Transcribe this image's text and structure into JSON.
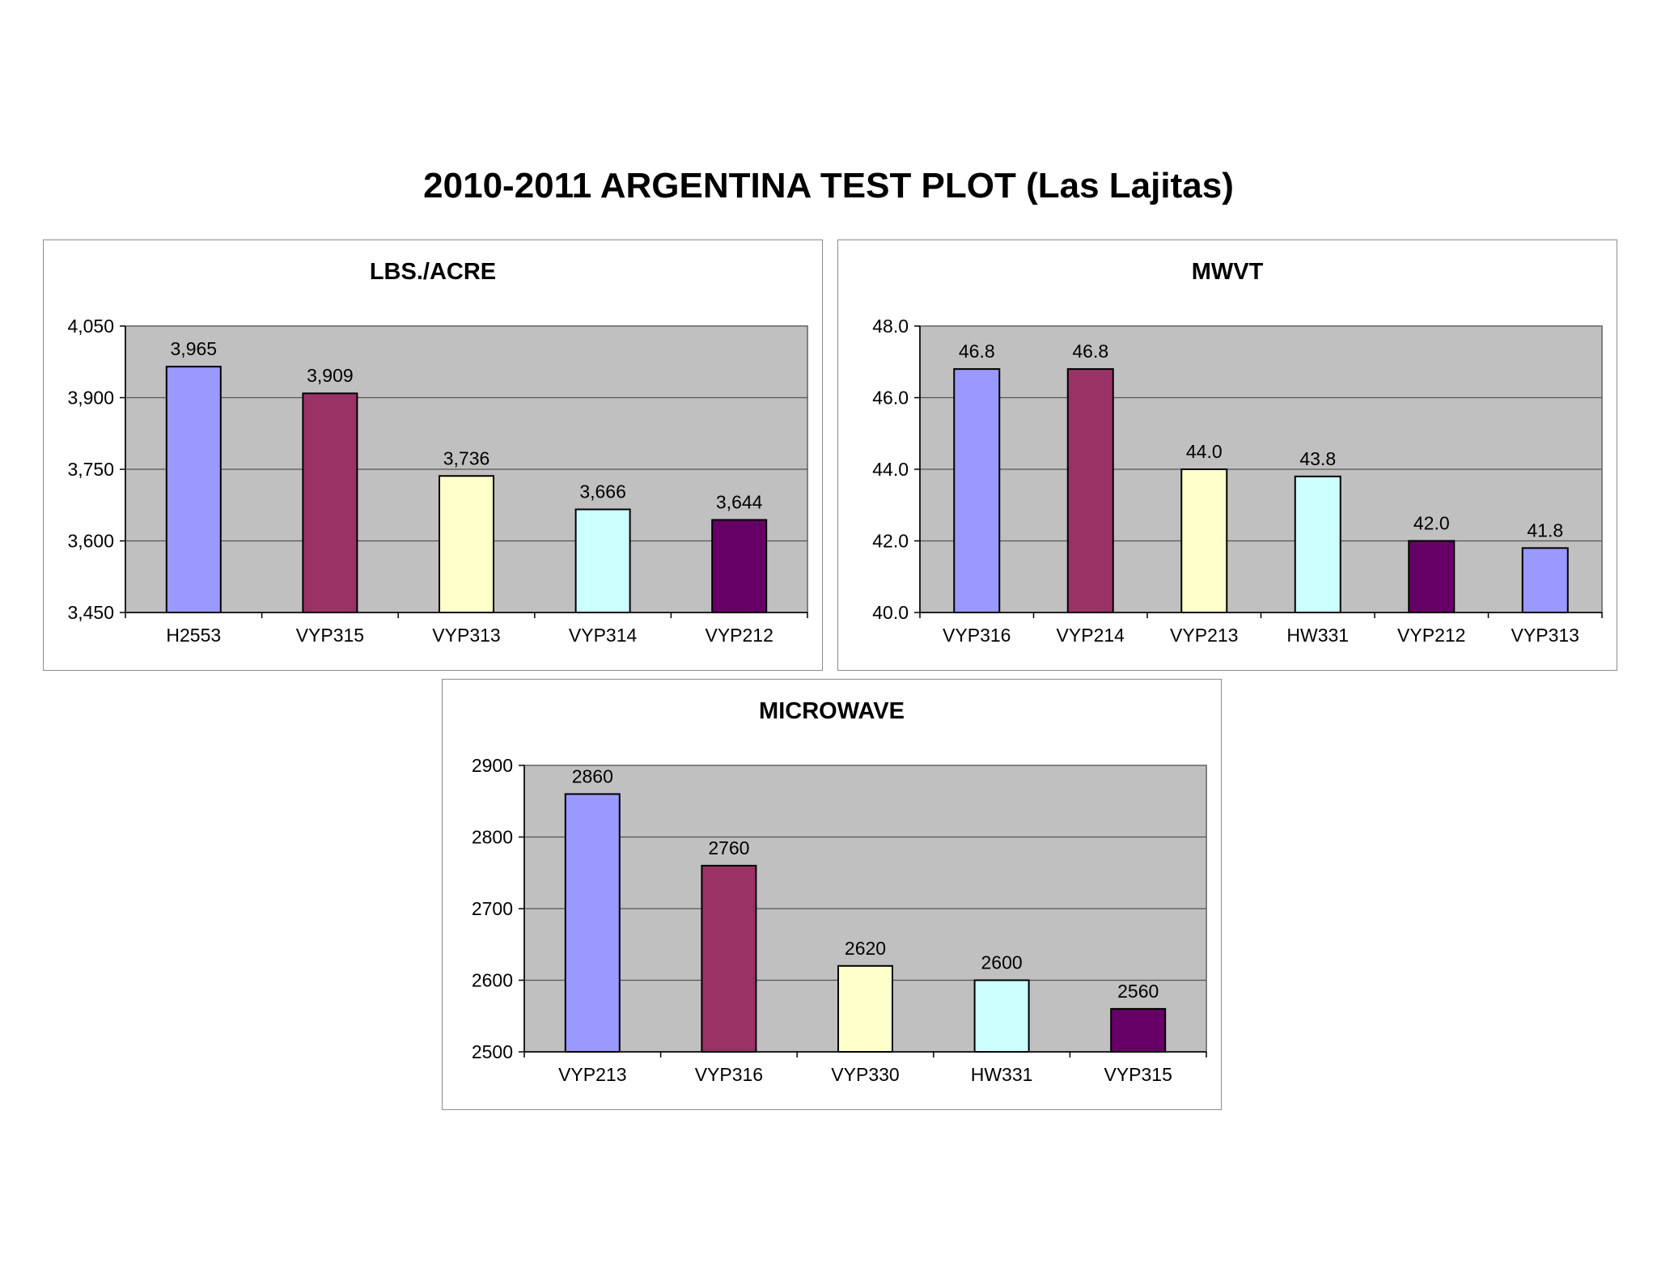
{
  "page": {
    "title": "2010-2011 ARGENTINA TEST PLOT (Las Lajitas)"
  },
  "colors": {
    "plot_bg": "#c0c0c0",
    "bar_1": "#9999ff",
    "bar_2": "#993366",
    "bar_3": "#ffffcc",
    "bar_4": "#ccffff",
    "bar_5": "#660066"
  },
  "chart_data": [
    {
      "id": "lbs",
      "type": "bar",
      "title": "LBS./ACRE",
      "categories": [
        "H2553",
        "VYP315",
        "VYP313",
        "VYP314",
        "VYP212"
      ],
      "values": [
        3965,
        3909,
        3736,
        3666,
        3644
      ],
      "value_labels": [
        "3,965",
        "3,909",
        "3,736",
        "3,666",
        "3,644"
      ],
      "colors": [
        "#9999ff",
        "#993366",
        "#ffffcc",
        "#ccffff",
        "#660066"
      ],
      "ylim": [
        3450,
        4050
      ],
      "yticks": [
        3450,
        3600,
        3750,
        3900,
        4050
      ],
      "ytick_labels": [
        "3,450",
        "3,600",
        "3,750",
        "3,900",
        "4,050"
      ],
      "grid": true,
      "legend": "none"
    },
    {
      "id": "mwvt",
      "type": "bar",
      "title": "MWVT",
      "categories": [
        "VYP316",
        "VYP214",
        "VYP213",
        "HW331",
        "VYP212",
        "VYP313"
      ],
      "values": [
        46.8,
        46.8,
        44.0,
        43.8,
        42.0,
        41.8
      ],
      "value_labels": [
        "46.8",
        "46.8",
        "44.0",
        "43.8",
        "42.0",
        "41.8"
      ],
      "colors": [
        "#9999ff",
        "#993366",
        "#ffffcc",
        "#ccffff",
        "#660066",
        "#9999ff"
      ],
      "ylim": [
        40.0,
        48.0
      ],
      "yticks": [
        40.0,
        42.0,
        44.0,
        46.0,
        48.0
      ],
      "ytick_labels": [
        "40.0",
        "42.0",
        "44.0",
        "46.0",
        "48.0"
      ],
      "grid": true,
      "legend": "none"
    },
    {
      "id": "micro",
      "type": "bar",
      "title": "MICROWAVE",
      "categories": [
        "VYP213",
        "VYP316",
        "VYP330",
        "HW331",
        "VYP315"
      ],
      "values": [
        2860,
        2760,
        2620,
        2600,
        2560
      ],
      "value_labels": [
        "2860",
        "2760",
        "2620",
        "2600",
        "2560"
      ],
      "colors": [
        "#9999ff",
        "#993366",
        "#ffffcc",
        "#ccffff",
        "#660066"
      ],
      "ylim": [
        2500,
        2900
      ],
      "yticks": [
        2500,
        2600,
        2700,
        2800,
        2900
      ],
      "ytick_labels": [
        "2500",
        "2600",
        "2700",
        "2800",
        "2900"
      ],
      "grid": true,
      "legend": "none"
    }
  ]
}
